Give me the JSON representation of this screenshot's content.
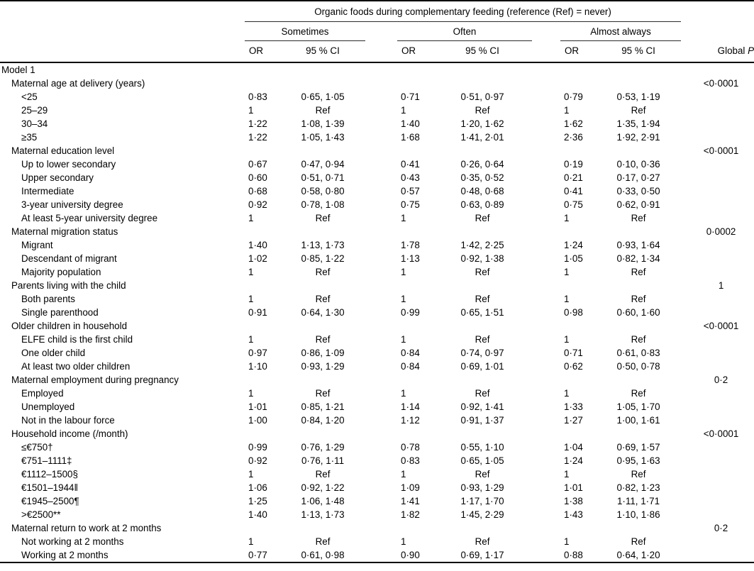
{
  "header": {
    "spanner": "Organic foods during complementary feeding (reference (Ref) = never)",
    "groups": [
      "Sometimes",
      "Often",
      "Almost always"
    ],
    "or_label": "OR",
    "ci_label": "95 % CI",
    "global_p": {
      "prefix": "Global ",
      "symbol": "P"
    }
  },
  "rows": [
    {
      "label": "Model 1",
      "indent": 0
    },
    {
      "label": "Maternal age at delivery (years)",
      "indent": 1,
      "p": "<0·0001"
    },
    {
      "label": "<25",
      "indent": 2,
      "cells": [
        "0·83",
        "0·65, 1·05",
        "0·71",
        "0·51, 0·97",
        "0·79",
        "0·53, 1·19"
      ]
    },
    {
      "label": "25–29",
      "indent": 2,
      "cells": [
        "1",
        "Ref",
        "1",
        "Ref",
        "1",
        "Ref"
      ]
    },
    {
      "label": "30–34",
      "indent": 2,
      "cells": [
        "1·22",
        "1·08, 1·39",
        "1·40",
        "1·20, 1·62",
        "1·62",
        "1·35, 1·94"
      ]
    },
    {
      "label": "≥35",
      "indent": 2,
      "cells": [
        "1·22",
        "1·05, 1·43",
        "1·68",
        "1·41, 2·01",
        "2·36",
        "1·92, 2·91"
      ]
    },
    {
      "label": "Maternal education level",
      "indent": 1,
      "p": "<0·0001"
    },
    {
      "label": "Up to lower secondary",
      "indent": 2,
      "cells": [
        "0·67",
        "0·47, 0·94",
        "0·41",
        "0·26, 0·64",
        "0·19",
        "0·10, 0·36"
      ]
    },
    {
      "label": "Upper secondary",
      "indent": 2,
      "cells": [
        "0·60",
        "0·51, 0·71",
        "0·43",
        "0·35, 0·52",
        "0·21",
        "0·17, 0·27"
      ]
    },
    {
      "label": "Intermediate",
      "indent": 2,
      "cells": [
        "0·68",
        "0·58, 0·80",
        "0·57",
        "0·48, 0·68",
        "0·41",
        "0·33, 0·50"
      ]
    },
    {
      "label": "3-year university degree",
      "indent": 2,
      "cells": [
        "0·92",
        "0·78, 1·08",
        "0·75",
        "0·63, 0·89",
        "0·75",
        "0·62, 0·91"
      ]
    },
    {
      "label": "At least 5-year university degree",
      "indent": 2,
      "cells": [
        "1",
        "Ref",
        "1",
        "Ref",
        "1",
        "Ref"
      ]
    },
    {
      "label": "Maternal migration status",
      "indent": 1,
      "p": "0·0002"
    },
    {
      "label": "Migrant",
      "indent": 2,
      "cells": [
        "1·40",
        "1·13, 1·73",
        "1·78",
        "1·42, 2·25",
        "1·24",
        "0·93, 1·64"
      ]
    },
    {
      "label": "Descendant of migrant",
      "indent": 2,
      "cells": [
        "1·02",
        "0·85, 1·22",
        "1·13",
        "0·92, 1·38",
        "1·05",
        "0·82, 1·34"
      ]
    },
    {
      "label": "Majority population",
      "indent": 2,
      "cells": [
        "1",
        "Ref",
        "1",
        "Ref",
        "1",
        "Ref"
      ]
    },
    {
      "label": "Parents living with the child",
      "indent": 1,
      "p": "1"
    },
    {
      "label": "Both parents",
      "indent": 2,
      "cells": [
        "1",
        "Ref",
        "1",
        "Ref",
        "1",
        "Ref"
      ]
    },
    {
      "label": "Single parenthood",
      "indent": 2,
      "cells": [
        "0·91",
        "0·64, 1·30",
        "0·99",
        "0·65, 1·51",
        "0·98",
        "0·60, 1·60"
      ]
    },
    {
      "label": "Older children in household",
      "indent": 1,
      "p": "<0·0001"
    },
    {
      "label": "ELFE child is the first child",
      "indent": 2,
      "cells": [
        "1",
        "Ref",
        "1",
        "Ref",
        "1",
        "Ref"
      ]
    },
    {
      "label": "One older child",
      "indent": 2,
      "cells": [
        "0·97",
        "0·86, 1·09",
        "0·84",
        "0·74, 0·97",
        "0·71",
        "0·61, 0·83"
      ]
    },
    {
      "label": "At least two older children",
      "indent": 2,
      "cells": [
        "1·10",
        "0·93, 1·29",
        "0·84",
        "0·69, 1·01",
        "0·62",
        "0·50, 0·78"
      ]
    },
    {
      "label": "Maternal employment during pregnancy",
      "indent": 1,
      "p": "0·2"
    },
    {
      "label": "Employed",
      "indent": 2,
      "cells": [
        "1",
        "Ref",
        "1",
        "Ref",
        "1",
        "Ref"
      ]
    },
    {
      "label": "Unemployed",
      "indent": 2,
      "cells": [
        "1·01",
        "0·85, 1·21",
        "1·14",
        "0·92, 1·41",
        "1·33",
        "1·05, 1·70"
      ]
    },
    {
      "label": "Not in the labour force",
      "indent": 2,
      "cells": [
        "1·00",
        "0·84, 1·20",
        "1·12",
        "0·91, 1·37",
        "1·27",
        "1·00, 1·61"
      ]
    },
    {
      "label": "Household income (/month)",
      "indent": 1,
      "p": "<0·0001"
    },
    {
      "label": "≤€750†",
      "indent": 2,
      "cells": [
        "0·99",
        "0·76, 1·29",
        "0·78",
        "0·55, 1·10",
        "1·04",
        "0·69, 1·57"
      ]
    },
    {
      "label": "€751–1111‡",
      "indent": 2,
      "cells": [
        "0·92",
        "0·76, 1·11",
        "0·83",
        "0·65, 1·05",
        "1·24",
        "0·95, 1·63"
      ]
    },
    {
      "label": "€1112–1500§",
      "indent": 2,
      "cells": [
        "1",
        "Ref",
        "1",
        "Ref",
        "1",
        "Ref"
      ]
    },
    {
      "label": "€1501–1944‖",
      "indent": 2,
      "cells": [
        "1·06",
        "0·92, 1·22",
        "1·09",
        "0·93, 1·29",
        "1·01",
        "0·82, 1·23"
      ]
    },
    {
      "label": "€1945–2500¶",
      "indent": 2,
      "cells": [
        "1·25",
        "1·06, 1·48",
        "1·41",
        "1·17, 1·70",
        "1·38",
        "1·11, 1·71"
      ]
    },
    {
      "label": ">€2500**",
      "indent": 2,
      "cells": [
        "1·40",
        "1·13, 1·73",
        "1·82",
        "1·45, 2·29",
        "1·43",
        "1·10, 1·86"
      ]
    },
    {
      "label": "Maternal return to work at 2 months",
      "indent": 1,
      "p": "0·2"
    },
    {
      "label": "Not working at 2 months",
      "indent": 2,
      "cells": [
        "1",
        "Ref",
        "1",
        "Ref",
        "1",
        "Ref"
      ]
    },
    {
      "label": "Working at 2 months",
      "indent": 2,
      "cells": [
        "0·77",
        "0·61, 0·98",
        "0·90",
        "0·69, 1·17",
        "0·88",
        "0·64, 1·20"
      ]
    }
  ]
}
